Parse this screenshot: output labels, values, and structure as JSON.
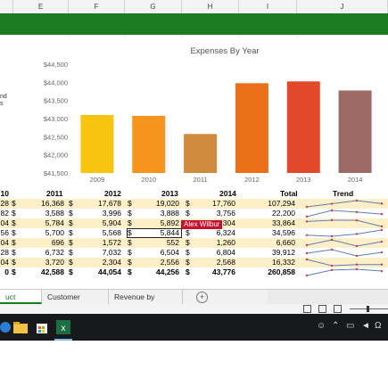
{
  "columns": [
    "E",
    "F",
    "G",
    "H",
    "I",
    "J"
  ],
  "left_text": [
    "nd",
    "s"
  ],
  "chart_data": {
    "type": "bar",
    "title": "Expenses By Year",
    "categories": [
      "2009",
      "2010",
      "2011",
      "2012",
      "2013",
      "2014"
    ],
    "values": [
      43100,
      43075,
      42575,
      43975,
      44025,
      43775
    ],
    "ylim": [
      41500,
      44500
    ],
    "yticks": [
      41500,
      42000,
      42500,
      43000,
      43500,
      44000,
      44500
    ],
    "ytick_labels": [
      "$41,500",
      "$42,000",
      "$42,500",
      "$43,000",
      "$43,500",
      "$44,000",
      "$44,500"
    ],
    "colors": [
      "#f9c40f",
      "#f5951e",
      "#cf8a3e",
      "#eb6f17",
      "#e2492a",
      "#9e6b64"
    ],
    "grid": false,
    "legend": "none"
  },
  "table": {
    "headers": [
      "10",
      "2011",
      "2012",
      "2013",
      "2014",
      "Total",
      "Trend"
    ],
    "rows": [
      {
        "c0": "28",
        "c1": "16,368",
        "c2": "17,678",
        "c3": "19,020",
        "c4": "17,760",
        "total": "107,294"
      },
      {
        "c0": "82",
        "c1": "3,588",
        "c2": "3,996",
        "c3": "3,888",
        "c4": "3,756",
        "total": "22,200"
      },
      {
        "c0": "04",
        "c1": "5,784",
        "c2": "5,904",
        "c3": "5,892",
        "c4": "5,304",
        "total": "33,864"
      },
      {
        "c0": "56",
        "c1": "5,700",
        "c2": "5,568",
        "c3": "5,844",
        "c4": "6,324",
        "total": "34,596"
      },
      {
        "c0": "04",
        "c1": "696",
        "c2": "1,572",
        "c3": "552",
        "c4": "1,260",
        "total": "6,660"
      },
      {
        "c0": "28",
        "c1": "6,732",
        "c2": "7,032",
        "c3": "6,504",
        "c4": "6,804",
        "total": "39,912"
      },
      {
        "c0": "04",
        "c1": "3,720",
        "c2": "2,304",
        "c3": "2,556",
        "c4": "2,568",
        "total": "16,332"
      },
      {
        "c0": "0",
        "c1": "42,588",
        "c2": "44,054",
        "c3": "44,256",
        "c4": "43,776",
        "total": "260,858"
      }
    ],
    "dollar": "$"
  },
  "tooltip": "Alex Wilbur",
  "tabs": [
    "uct Analysis",
    "Customer Analysis",
    "Revenue by Country"
  ],
  "add_sheet": "+",
  "colors": {
    "banner": "#1c7a1f",
    "band": "#fdf0c8",
    "taskbar": "#17191c",
    "tooltip": "#c8102e"
  }
}
